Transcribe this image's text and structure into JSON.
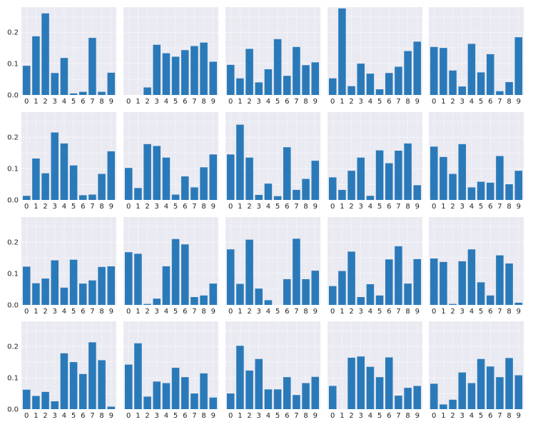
{
  "colors": {
    "bar": "#2a7ab9",
    "panel_bg": "#eaeaf2",
    "grid": "#ffffff",
    "text": "#222222"
  },
  "chart_data": {
    "type": "bar",
    "layout": "grid",
    "rows": 4,
    "cols": 5,
    "shared_y": true,
    "ylim": [
      0,
      0.28
    ],
    "yticks": [
      0.0,
      0.1,
      0.2
    ],
    "ytick_labels": [
      "0.0",
      "0.1",
      "0.2"
    ],
    "categories": [
      "0",
      "1",
      "2",
      "3",
      "4",
      "5",
      "6",
      "7",
      "8",
      "9"
    ],
    "grid": true,
    "panels": [
      {
        "values": [
          0.093,
          0.187,
          0.26,
          0.07,
          0.118,
          0.005,
          0.01,
          0.182,
          0.01,
          0.071
        ]
      },
      {
        "values": [
          0.0,
          0.0,
          0.024,
          0.16,
          0.133,
          0.122,
          0.143,
          0.156,
          0.167,
          0.106
        ]
      },
      {
        "values": [
          0.096,
          0.053,
          0.147,
          0.04,
          0.082,
          0.178,
          0.061,
          0.153,
          0.095,
          0.104
        ]
      },
      {
        "values": [
          0.053,
          0.276,
          0.028,
          0.1,
          0.068,
          0.018,
          0.07,
          0.09,
          0.14,
          0.17
        ]
      },
      {
        "values": [
          0.153,
          0.15,
          0.078,
          0.027,
          0.163,
          0.072,
          0.13,
          0.012,
          0.041,
          0.184
        ]
      },
      {
        "values": [
          0.013,
          0.132,
          0.085,
          0.215,
          0.18,
          0.11,
          0.015,
          0.017,
          0.083,
          0.155
        ]
      },
      {
        "values": [
          0.102,
          0.038,
          0.178,
          0.172,
          0.135,
          0.017,
          0.075,
          0.04,
          0.104,
          0.145
        ]
      },
      {
        "values": [
          0.145,
          0.24,
          0.135,
          0.016,
          0.052,
          0.012,
          0.168,
          0.032,
          0.067,
          0.125
        ]
      },
      {
        "values": [
          0.072,
          0.032,
          0.093,
          0.135,
          0.013,
          0.158,
          0.117,
          0.157,
          0.18,
          0.047
        ]
      },
      {
        "values": [
          0.17,
          0.137,
          0.083,
          0.178,
          0.04,
          0.058,
          0.055,
          0.14,
          0.05,
          0.093
        ]
      },
      {
        "values": [
          0.122,
          0.069,
          0.084,
          0.142,
          0.055,
          0.144,
          0.068,
          0.078,
          0.121,
          0.123
        ]
      },
      {
        "values": [
          0.168,
          0.163,
          0.003,
          0.02,
          0.123,
          0.21,
          0.193,
          0.025,
          0.03,
          0.068
        ]
      },
      {
        "values": [
          0.177,
          0.067,
          0.208,
          0.052,
          0.015,
          0.0,
          0.082,
          0.211,
          0.082,
          0.109
        ]
      },
      {
        "values": [
          0.06,
          0.108,
          0.17,
          0.025,
          0.066,
          0.03,
          0.145,
          0.187,
          0.068,
          0.146
        ]
      },
      {
        "values": [
          0.148,
          0.137,
          0.003,
          0.139,
          0.177,
          0.072,
          0.03,
          0.158,
          0.132,
          0.007
        ]
      },
      {
        "values": [
          0.062,
          0.042,
          0.055,
          0.025,
          0.178,
          0.15,
          0.112,
          0.213,
          0.156,
          0.008
        ]
      },
      {
        "values": [
          0.142,
          0.21,
          0.04,
          0.088,
          0.083,
          0.132,
          0.102,
          0.05,
          0.114,
          0.037
        ]
      },
      {
        "values": [
          0.05,
          0.202,
          0.123,
          0.16,
          0.063,
          0.063,
          0.102,
          0.045,
          0.083,
          0.103
        ]
      },
      {
        "values": [
          0.074,
          0.0,
          0.164,
          0.168,
          0.135,
          0.102,
          0.165,
          0.043,
          0.068,
          0.074
        ]
      },
      {
        "values": [
          0.081,
          0.015,
          0.03,
          0.117,
          0.083,
          0.16,
          0.136,
          0.102,
          0.163,
          0.108
        ]
      }
    ]
  }
}
